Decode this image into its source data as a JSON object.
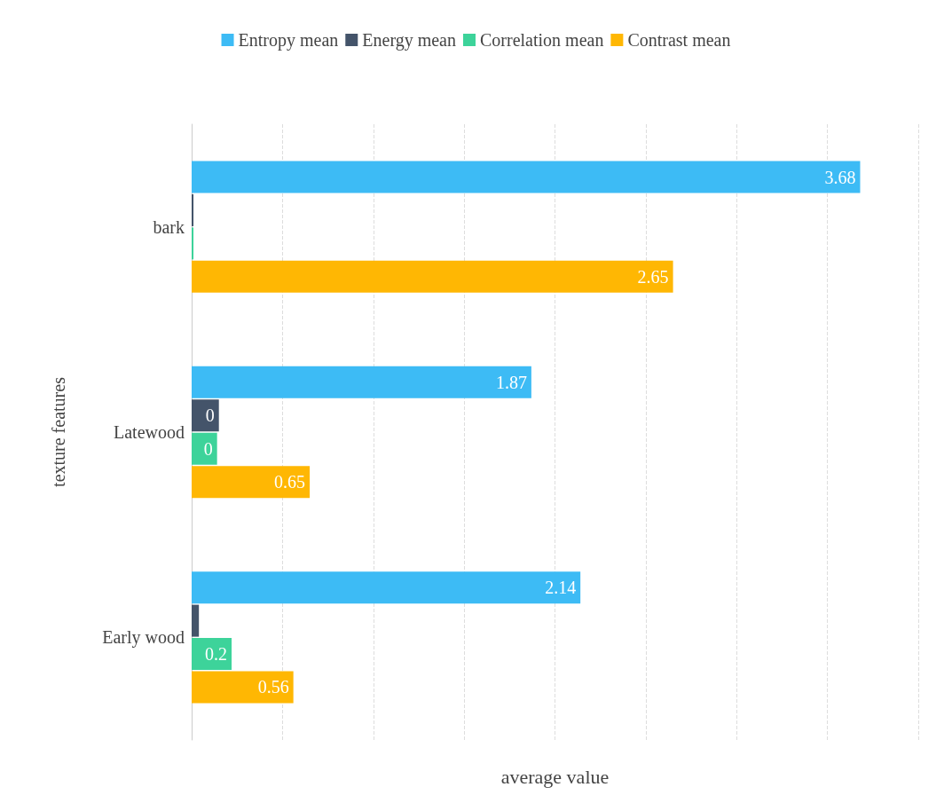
{
  "chart_data": {
    "type": "bar",
    "orientation": "horizontal",
    "xlabel": "average value",
    "ylabel": "texture features",
    "categories": [
      "bark",
      "Latewood",
      "Early wood"
    ],
    "series": [
      {
        "name": "Entropy mean",
        "color": "#3dbbf5",
        "values": [
          3.68,
          1.87,
          2.14
        ],
        "value_labels": [
          "3.68",
          "1.87",
          "2.14"
        ]
      },
      {
        "name": "Energy mean",
        "color": "#44546a",
        "values": [
          0.01,
          0.15,
          0.04
        ],
        "value_labels": [
          null,
          "0",
          null
        ]
      },
      {
        "name": "Correlation mean",
        "color": "#3dd39a",
        "values": [
          0.01,
          0.14,
          0.22
        ],
        "value_labels": [
          null,
          "0",
          "0.2"
        ]
      },
      {
        "name": "Contrast mean",
        "color": "#ffb703",
        "values": [
          2.65,
          0.65,
          0.56
        ],
        "value_labels": [
          "2.65",
          "0.65",
          "0.56"
        ]
      }
    ],
    "xlim": [
      0,
      4
    ],
    "xticks": [
      {
        "value": 0,
        "label": null
      },
      {
        "value": 0.5,
        "label": null
      },
      {
        "value": 1,
        "label": null
      },
      {
        "value": 1.5,
        "label": null
      },
      {
        "value": 2,
        "label": null
      },
      {
        "value": 2.5,
        "label": null
      },
      {
        "value": 3,
        "label": null
      },
      {
        "value": 3.5,
        "label": null
      },
      {
        "value": 4,
        "label": null
      }
    ],
    "tick_labels": "y",
    "grid": "x",
    "legend": "top"
  }
}
